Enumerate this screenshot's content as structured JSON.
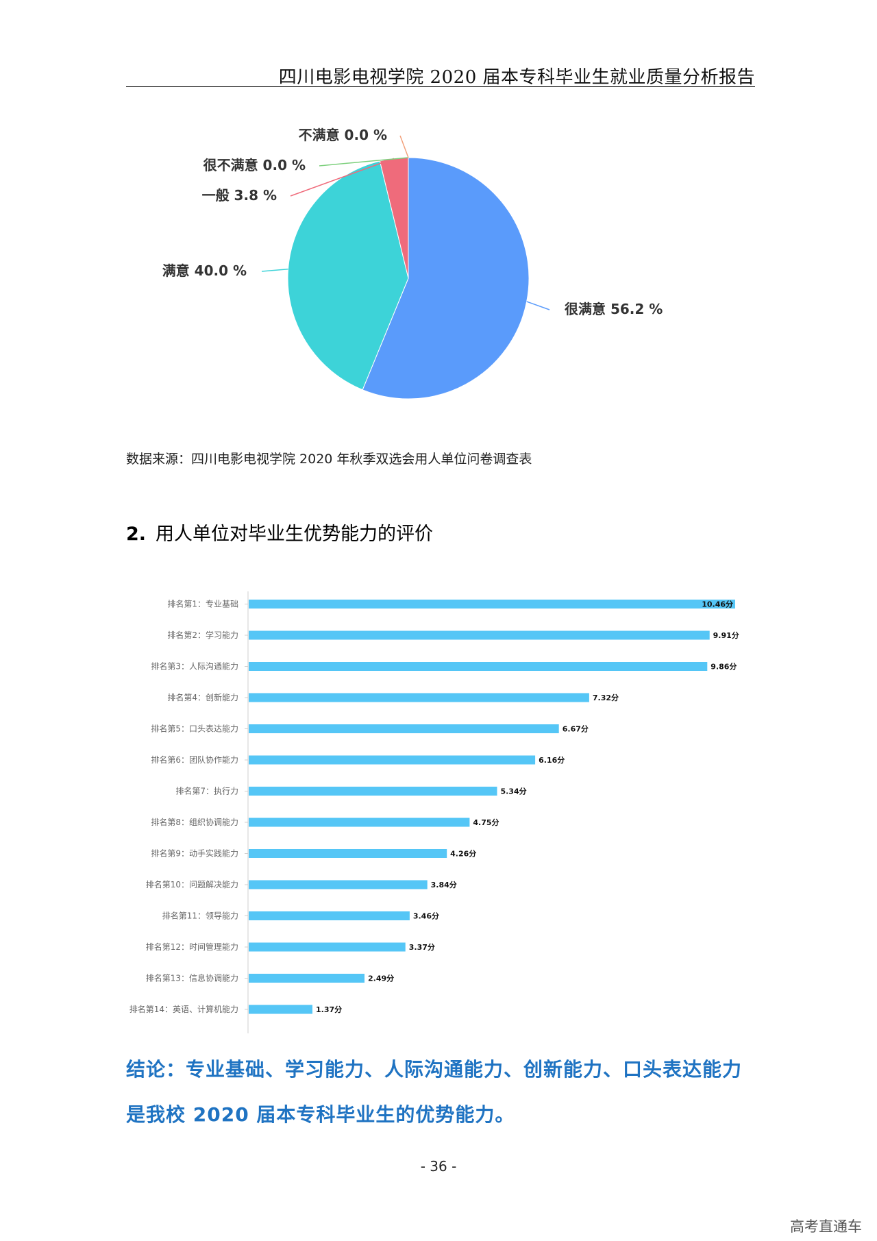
{
  "header": {
    "title": "四川电影电视学院 2020 届本专科毕业生就业质量分析报告"
  },
  "source": {
    "text": "数据来源：四川电影电视学院 2020 年秋季双选会用人单位问卷调查表"
  },
  "section": {
    "number": "2.",
    "title": "用人单位对毕业生优势能力的评价"
  },
  "conclusion": {
    "text": "结论：专业基础、学习能力、人际沟通能力、创新能力、口头表达能力是我校 2020 届本专科毕业生的优势能力。"
  },
  "page": {
    "number": "- 36 -"
  },
  "watermark": {
    "text": "高考直通车"
  },
  "chart_data": [
    {
      "type": "pie",
      "slices": [
        {
          "label": "很满意",
          "value": 56.2,
          "display": "很满意 56.2 %",
          "color": "#5a9bfb"
        },
        {
          "label": "满意",
          "value": 40.0,
          "display": "满意 40.0 %",
          "color": "#3dd3d8"
        },
        {
          "label": "一般",
          "value": 3.8,
          "display": "一般 3.8 %",
          "color": "#ef6b7b"
        },
        {
          "label": "很不满意",
          "value": 0.0,
          "display": "很不满意 0.0 %",
          "color": "#7dd07d"
        },
        {
          "label": "不满意",
          "value": 0.0,
          "display": "不满意 0.0 %",
          "color": "#f2a07a"
        }
      ]
    },
    {
      "type": "bar",
      "orientation": "horizontal",
      "bar_color": "#55c6f6",
      "categories": [
        "排名第1：专业基础",
        "排名第2：学习能力",
        "排名第3：人际沟通能力",
        "排名第4：创新能力",
        "排名第5：口头表达能力",
        "排名第6：团队协作能力",
        "排名第7：执行力",
        "排名第8：组织协调能力",
        "排名第9：动手实践能力",
        "排名第10：问题解决能力",
        "排名第11：领导能力",
        "排名第12：时间管理能力",
        "排名第13：信息协调能力",
        "排名第14：英语、计算机能力"
      ],
      "values": [
        10.46,
        9.91,
        9.86,
        7.32,
        6.67,
        6.16,
        5.34,
        4.75,
        4.26,
        3.84,
        3.46,
        3.37,
        2.49,
        1.37
      ],
      "value_labels": [
        "10.46分",
        "9.91分",
        "9.86分",
        "7.32分",
        "6.67分",
        "6.16分",
        "5.34分",
        "4.75分",
        "4.26分",
        "3.84分",
        "3.46分",
        "3.37分",
        "2.49分",
        "1.37分"
      ]
    }
  ]
}
